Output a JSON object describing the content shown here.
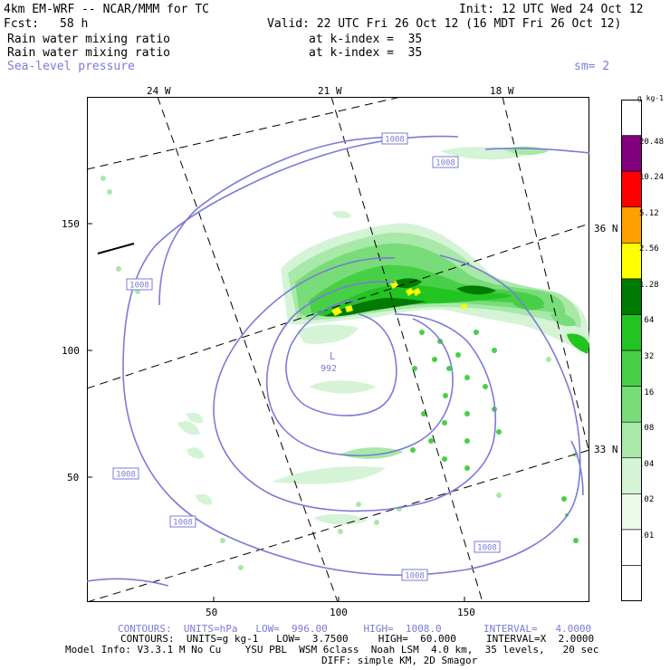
{
  "header": {
    "title_left": "4km EM-WRF -- NCAR/MMM for TC",
    "init": "Init: 12 UTC Wed 24 Oct 12",
    "fcst_label": "Fcst:",
    "fcst_value": "58 h",
    "valid": "Valid: 22 UTC Fri 26 Oct 12 (16 MDT Fri 26 Oct 12)",
    "field1": "Rain water mixing ratio",
    "field1_level": "at k-index =  35",
    "field2": "Rain water mixing ratio",
    "field2_level": "at k-index =  35",
    "field3": "Sea-level pressure",
    "smoothing": "sm= 2"
  },
  "map": {
    "lon_labels": [
      "24 W",
      "21 W",
      "18 W"
    ],
    "lat_labels": [
      "36 N",
      "33 N"
    ],
    "y_ticks": [
      "150",
      "100",
      "50"
    ],
    "x_ticks": [
      "50",
      "100",
      "150"
    ],
    "low_label": "L",
    "low_value": "992",
    "contour_label": "1008"
  },
  "colorbar": {
    "units": "g kg-1",
    "levels": [
      "20.48",
      "10.24",
      "5.12",
      "2.56",
      "1.28",
      ".64",
      ".32",
      ".16",
      ".08",
      ".04",
      ".02",
      ".01"
    ],
    "colors": [
      "#ffffff",
      "#ffffff",
      "#ecfaec",
      "#d5f3d5",
      "#a8e8a8",
      "#78dc78",
      "#47d047",
      "#22c422",
      "#007a00",
      "#ffff00",
      "#ffa000",
      "#ff0000",
      "#800080",
      "#ffffff"
    ]
  },
  "footer": {
    "contours1": "CONTOURS:  UNITS=hPa   LOW=  996.00      HIGH=  1008.0       INTERVAL=   4.0000",
    "contours2": "CONTOURS:  UNITS=g kg-1   LOW=  3.7500     HIGH=  60.000     INTERVAL=X  2.0000",
    "model_info": "Model Info: V3.3.1 M No Cu    YSU PBL  WSM 6class  Noah LSM  4.0 km,  35 levels,   20 sec",
    "diff": "DIFF: simple KM, 2D Smagor"
  }
}
